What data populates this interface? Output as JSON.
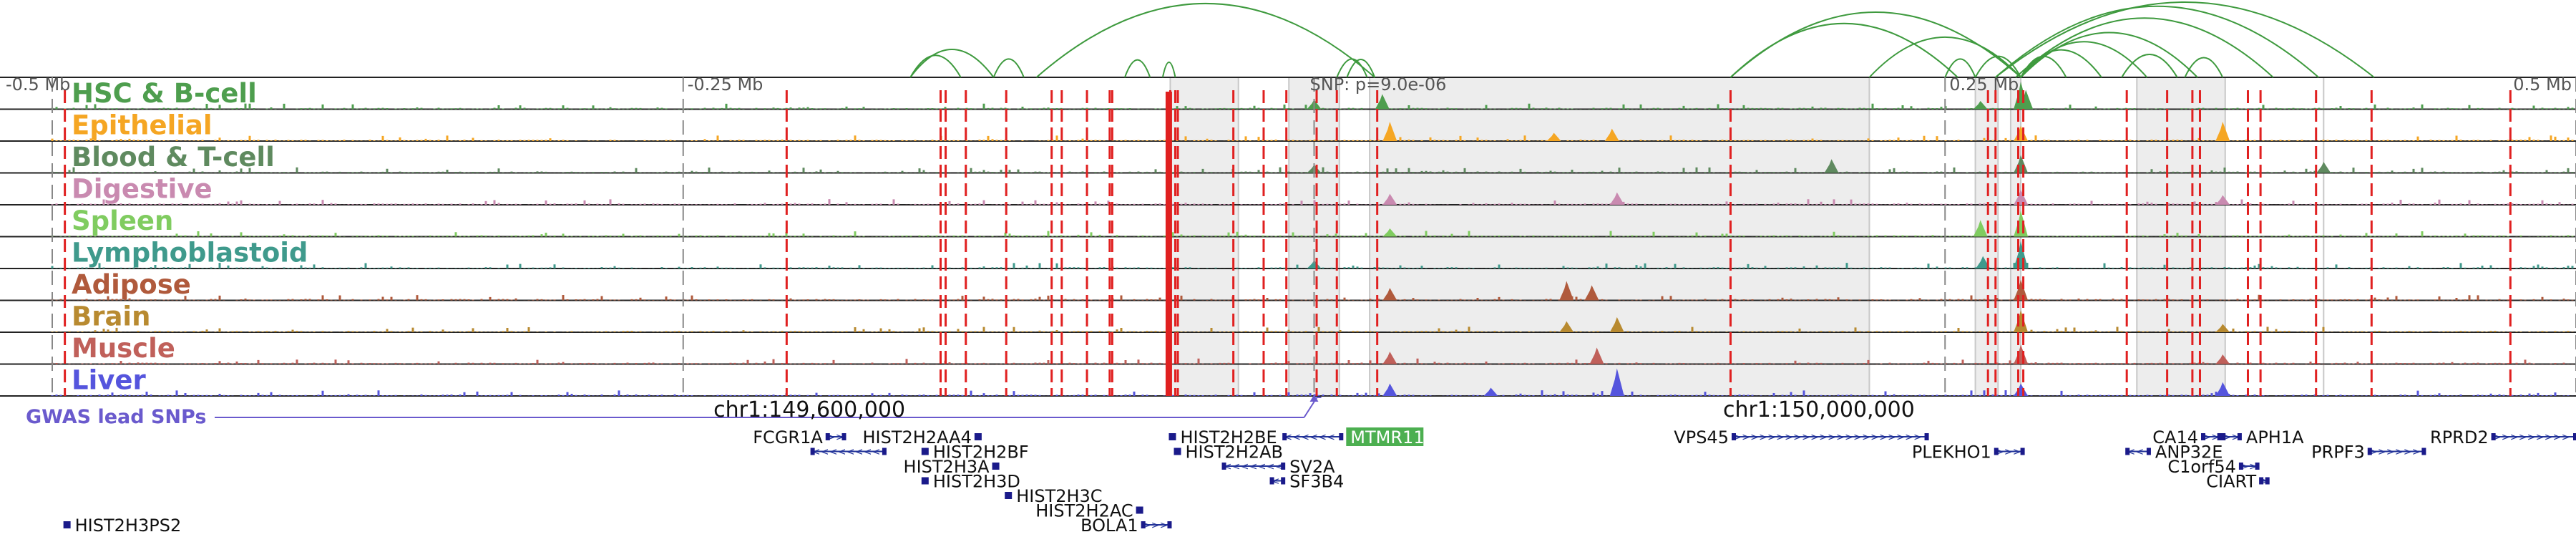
{
  "chart_data": {
    "type": "genome-browser",
    "chromosome": "chr1",
    "scale_labels": [
      "-0.5 Mb",
      "-0.25 Mb",
      "0.25 Mb",
      "0.5 Mb"
    ],
    "scale_positions_mb": [
      -0.5,
      -0.25,
      0.25,
      0.5
    ],
    "snp_label": "SNP: p=9.0e-06",
    "snp_position_mb": 0.0,
    "coordinate_labels": [
      {
        "text": "chr1:149,600,000",
        "mb": -0.2
      },
      {
        "text": "chr1:150,000,000",
        "mb": 0.2
      }
    ],
    "gwas_label": "GWAS lead SNPs",
    "tracks": [
      {
        "name": "HSC & B-cell",
        "color": "#4e9e4e",
        "peaks": [
          {
            "mb": 0.28,
            "h": 1.0
          },
          {
            "mb": 0.027,
            "h": 0.55
          },
          {
            "mb": 0.282,
            "h": 0.7
          },
          {
            "mb": 0.0,
            "h": 0.35
          },
          {
            "mb": 0.264,
            "h": 0.3
          }
        ]
      },
      {
        "name": "Epithelial",
        "color": "#f5a623",
        "peaks": [
          {
            "mb": 0.03,
            "h": 0.7
          },
          {
            "mb": 0.36,
            "h": 0.7
          },
          {
            "mb": 0.28,
            "h": 0.55
          },
          {
            "mb": 0.118,
            "h": 0.45
          },
          {
            "mb": 0.095,
            "h": 0.3
          }
        ]
      },
      {
        "name": "Blood & T-cell",
        "color": "#5f8a5f",
        "peaks": [
          {
            "mb": 0.28,
            "h": 0.65
          },
          {
            "mb": 0.205,
            "h": 0.5
          },
          {
            "mb": 0.4,
            "h": 0.4
          },
          {
            "mb": 0.0,
            "h": 0.3
          }
        ]
      },
      {
        "name": "Digestive",
        "color": "#c98ab0",
        "peaks": [
          {
            "mb": 0.28,
            "h": 0.55
          },
          {
            "mb": 0.12,
            "h": 0.45
          },
          {
            "mb": 0.03,
            "h": 0.4
          },
          {
            "mb": 0.36,
            "h": 0.35
          }
        ]
      },
      {
        "name": "Spleen",
        "color": "#80cc60",
        "peaks": [
          {
            "mb": 0.28,
            "h": 0.95
          },
          {
            "mb": 0.264,
            "h": 0.6
          },
          {
            "mb": 0.03,
            "h": 0.3
          }
        ]
      },
      {
        "name": "Lymphoblastoid",
        "color": "#3f9a8c",
        "peaks": [
          {
            "mb": 0.28,
            "h": 1.0
          },
          {
            "mb": 0.265,
            "h": 0.45
          },
          {
            "mb": 0.0,
            "h": 0.3
          }
        ]
      },
      {
        "name": "Adipose",
        "color": "#b05a3c",
        "peaks": [
          {
            "mb": 0.28,
            "h": 0.75
          },
          {
            "mb": 0.1,
            "h": 0.7
          },
          {
            "mb": 0.11,
            "h": 0.55
          },
          {
            "mb": 0.03,
            "h": 0.45
          }
        ]
      },
      {
        "name": "Brain",
        "color": "#b88a30",
        "peaks": [
          {
            "mb": 0.28,
            "h": 0.8
          },
          {
            "mb": 0.12,
            "h": 0.55
          },
          {
            "mb": 0.1,
            "h": 0.4
          },
          {
            "mb": 0.36,
            "h": 0.3
          }
        ]
      },
      {
        "name": "Muscle",
        "color": "#c0605a",
        "peaks": [
          {
            "mb": 0.28,
            "h": 0.7
          },
          {
            "mb": 0.112,
            "h": 0.6
          },
          {
            "mb": 0.03,
            "h": 0.45
          },
          {
            "mb": 0.36,
            "h": 0.35
          }
        ]
      },
      {
        "name": "Liver",
        "color": "#5555dd",
        "peaks": [
          {
            "mb": 0.12,
            "h": 1.0
          },
          {
            "mb": 0.03,
            "h": 0.45
          },
          {
            "mb": 0.36,
            "h": 0.5
          },
          {
            "mb": 0.28,
            "h": 0.45
          },
          {
            "mb": 0.07,
            "h": 0.3
          }
        ]
      }
    ],
    "red_lines_mb": [
      -0.495,
      -0.209,
      -0.148,
      -0.146,
      -0.138,
      -0.122,
      -0.104,
      -0.1,
      -0.09,
      -0.081,
      -0.08,
      -0.057,
      -0.055,
      -0.054,
      -0.032,
      -0.02,
      -0.011,
      0.001,
      0.009,
      0.025,
      0.165,
      0.267,
      0.27,
      0.279,
      0.281,
      0.322,
      0.338,
      0.348,
      0.351,
      0.37,
      0.375,
      0.397,
      0.419,
      0.474
    ],
    "grey_bands_mb": [
      -0.057,
      -0.03,
      -0.01,
      0.01,
      0.022,
      0.22,
      0.262,
      0.271,
      0.276,
      0.28,
      0.326,
      0.361,
      0.4
    ],
    "loops": [
      {
        "from": -0.16,
        "to": -0.14
      },
      {
        "from": -0.16,
        "to": -0.127
      },
      {
        "from": -0.127,
        "to": -0.115
      },
      {
        "from": -0.11,
        "to": 0.024
      },
      {
        "from": -0.075,
        "to": -0.065
      },
      {
        "from": -0.06,
        "to": -0.055
      },
      {
        "from": 0.009,
        "to": 0.021
      },
      {
        "from": 0.013,
        "to": 0.024
      },
      {
        "from": 0.165,
        "to": 0.28
      },
      {
        "from": 0.165,
        "to": 0.255
      },
      {
        "from": 0.22,
        "to": 0.28
      },
      {
        "from": 0.25,
        "to": 0.262
      },
      {
        "from": 0.262,
        "to": 0.28
      },
      {
        "from": 0.27,
        "to": 0.398
      },
      {
        "from": 0.27,
        "to": 0.42
      },
      {
        "from": 0.278,
        "to": 0.38
      },
      {
        "from": 0.28,
        "to": 0.35
      },
      {
        "from": 0.28,
        "to": 0.33
      },
      {
        "from": 0.28,
        "to": 0.312
      },
      {
        "from": 0.28,
        "to": 0.298
      },
      {
        "from": 0.32,
        "to": 0.342
      },
      {
        "from": 0.345,
        "to": 0.36
      }
    ],
    "genes": [
      {
        "name": "FCGR1A",
        "start": -0.193,
        "end": -0.186,
        "strand": "+",
        "row": 0,
        "label_side": "left"
      },
      {
        "name": "",
        "start": -0.199,
        "end": -0.17,
        "strand": "-",
        "row": 1,
        "label_side": "left"
      },
      {
        "name": "HIST2H2AA4",
        "start": -0.134,
        "end": -0.133,
        "strand": "-",
        "row": 0,
        "label_side": "left"
      },
      {
        "name": "HIST2H2BF",
        "start": -0.155,
        "end": -0.154,
        "strand": "-",
        "row": 1,
        "label_side": "right"
      },
      {
        "name": "HIST2H3A",
        "start": -0.127,
        "end": -0.126,
        "strand": "-",
        "row": 2,
        "label_side": "left"
      },
      {
        "name": "HIST2H3D",
        "start": -0.155,
        "end": -0.154,
        "strand": "-",
        "row": 3,
        "label_side": "right"
      },
      {
        "name": "HIST2H3C",
        "start": -0.122,
        "end": -0.121,
        "strand": "+",
        "row": 4,
        "label_side": "right"
      },
      {
        "name": "HIST2H2AC",
        "start": -0.07,
        "end": -0.069,
        "strand": "-",
        "row": 5,
        "label_side": "left"
      },
      {
        "name": "BOLA1",
        "start": -0.068,
        "end": -0.057,
        "strand": "+",
        "row": 6,
        "label_side": "left"
      },
      {
        "name": "HIST2H2BE",
        "start": -0.057,
        "end": -0.056,
        "strand": "+",
        "row": 0,
        "label_side": "right"
      },
      {
        "name": "HIST2H2AB",
        "start": -0.055,
        "end": -0.054,
        "strand": "-",
        "row": 1,
        "label_side": "right"
      },
      {
        "name": "SV2A",
        "start": -0.036,
        "end": -0.012,
        "strand": "-",
        "row": 2,
        "label_side": "right"
      },
      {
        "name": "SF3B4",
        "start": -0.017,
        "end": -0.012,
        "strand": "-",
        "row": 3,
        "label_side": "right"
      },
      {
        "name": "MTMR11",
        "start": -0.012,
        "end": 0.011,
        "strand": "-",
        "row": 0,
        "label_side": "right",
        "highlight": true
      },
      {
        "name": "VPS45",
        "start": 0.166,
        "end": 0.243,
        "strand": "+",
        "row": 0,
        "label_side": "left"
      },
      {
        "name": "PLEKHO1",
        "start": 0.27,
        "end": 0.281,
        "strand": "+",
        "row": 1,
        "label_side": "left"
      },
      {
        "name": "ANP32E",
        "start": 0.322,
        "end": 0.331,
        "strand": "-",
        "row": 1,
        "label_side": "right"
      },
      {
        "name": "CA14",
        "start": 0.352,
        "end": 0.359,
        "strand": "+",
        "row": 0,
        "label_side": "left"
      },
      {
        "name": "APH1A",
        "start": 0.36,
        "end": 0.367,
        "strand": "+",
        "row": 0,
        "label_side": "right"
      },
      {
        "name": "C1orf54",
        "start": 0.367,
        "end": 0.374,
        "strand": "+",
        "row": 2,
        "label_side": "left"
      },
      {
        "name": "CIART",
        "start": 0.375,
        "end": 0.378,
        "strand": "+",
        "row": 3,
        "label_side": "left"
      },
      {
        "name": "PRPF3",
        "start": 0.418,
        "end": 0.44,
        "strand": "+",
        "row": 1,
        "label_side": "left"
      },
      {
        "name": "RPRD2",
        "start": 0.467,
        "end": 0.5,
        "strand": "+",
        "row": 0,
        "label_side": "left"
      },
      {
        "name": "HIST2H3PS2",
        "start": -0.495,
        "end": -0.494,
        "strand": "+",
        "row": 6,
        "label_side": "right"
      }
    ]
  }
}
